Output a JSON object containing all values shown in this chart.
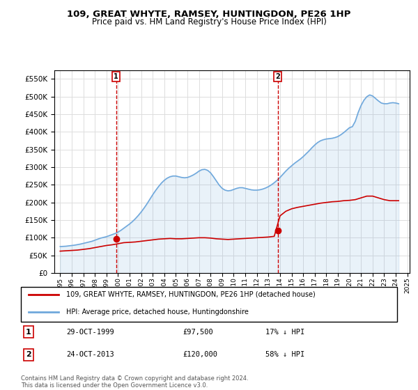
{
  "title": "109, GREAT WHYTE, RAMSEY, HUNTINGDON, PE26 1HP",
  "subtitle": "Price paid vs. HM Land Registry's House Price Index (HPI)",
  "ylim": [
    0,
    575000
  ],
  "yticks": [
    0,
    50000,
    100000,
    150000,
    200000,
    250000,
    300000,
    350000,
    400000,
    450000,
    500000,
    550000
  ],
  "ylabel_format": "£{0}K",
  "hpi_color": "#6fa8dc",
  "price_color": "#cc0000",
  "marker1_year": 1999.83,
  "marker1_price": 97500,
  "marker2_year": 2013.81,
  "marker2_price": 120000,
  "marker1_label": "1",
  "marker2_label": "2",
  "legend_line1": "109, GREAT WHYTE, RAMSEY, HUNTINGDON, PE26 1HP (detached house)",
  "legend_line2": "HPI: Average price, detached house, Huntingdonshire",
  "table_row1": "1     29-OCT-1999          £97,500          17% ↓ HPI",
  "table_row2": "2     24-OCT-2013          £120,000        58% ↓ HPI",
  "footer": "Contains HM Land Registry data © Crown copyright and database right 2024.\nThis data is licensed under the Open Government Licence v3.0.",
  "background_color": "#ffffff",
  "grid_color": "#dddddd",
  "hpi_data": {
    "years": [
      1995,
      1995.25,
      1995.5,
      1995.75,
      1996,
      1996.25,
      1996.5,
      1996.75,
      1997,
      1997.25,
      1997.5,
      1997.75,
      1998,
      1998.25,
      1998.5,
      1998.75,
      1999,
      1999.25,
      1999.5,
      1999.75,
      2000,
      2000.25,
      2000.5,
      2000.75,
      2001,
      2001.25,
      2001.5,
      2001.75,
      2002,
      2002.25,
      2002.5,
      2002.75,
      2003,
      2003.25,
      2003.5,
      2003.75,
      2004,
      2004.25,
      2004.5,
      2004.75,
      2005,
      2005.25,
      2005.5,
      2005.75,
      2006,
      2006.25,
      2006.5,
      2006.75,
      2007,
      2007.25,
      2007.5,
      2007.75,
      2008,
      2008.25,
      2008.5,
      2008.75,
      2009,
      2009.25,
      2009.5,
      2009.75,
      2010,
      2010.25,
      2010.5,
      2010.75,
      2011,
      2011.25,
      2011.5,
      2011.75,
      2012,
      2012.25,
      2012.5,
      2012.75,
      2013,
      2013.25,
      2013.5,
      2013.75,
      2014,
      2014.25,
      2014.5,
      2014.75,
      2015,
      2015.25,
      2015.5,
      2015.75,
      2016,
      2016.25,
      2016.5,
      2016.75,
      2017,
      2017.25,
      2017.5,
      2017.75,
      2018,
      2018.25,
      2018.5,
      2018.75,
      2019,
      2019.25,
      2019.5,
      2019.75,
      2020,
      2020.25,
      2020.5,
      2020.75,
      2021,
      2021.25,
      2021.5,
      2021.75,
      2022,
      2022.25,
      2022.5,
      2022.75,
      2023,
      2023.25,
      2023.5,
      2023.75,
      2024,
      2024.25
    ],
    "values": [
      75000,
      75500,
      76000,
      77000,
      78000,
      79000,
      80500,
      82000,
      84000,
      86000,
      88000,
      90000,
      93000,
      96000,
      99000,
      101000,
      103000,
      106000,
      109000,
      112000,
      116000,
      121000,
      127000,
      133000,
      139000,
      146000,
      154000,
      163000,
      173000,
      184000,
      196000,
      209000,
      222000,
      234000,
      245000,
      255000,
      263000,
      269000,
      273000,
      275000,
      275000,
      273000,
      271000,
      270000,
      271000,
      274000,
      278000,
      283000,
      289000,
      293000,
      294000,
      291000,
      284000,
      273000,
      261000,
      249000,
      240000,
      235000,
      233000,
      234000,
      237000,
      240000,
      242000,
      242000,
      240000,
      238000,
      236000,
      235000,
      235000,
      236000,
      238000,
      241000,
      245000,
      250000,
      256000,
      263000,
      271000,
      280000,
      289000,
      297000,
      304000,
      311000,
      317000,
      323000,
      330000,
      338000,
      346000,
      355000,
      363000,
      370000,
      375000,
      378000,
      380000,
      381000,
      382000,
      384000,
      387000,
      392000,
      398000,
      405000,
      412000,
      415000,
      430000,
      455000,
      475000,
      490000,
      500000,
      505000,
      502000,
      495000,
      488000,
      482000,
      480000,
      480000,
      482000,
      483000,
      482000,
      480000
    ]
  },
  "price_data": {
    "years": [
      1995,
      1995.5,
      1996,
      1996.5,
      1997,
      1997.5,
      1998,
      1998.5,
      1999,
      1999.5,
      2000,
      2000.5,
      2001,
      2001.5,
      2002,
      2002.5,
      2003,
      2003.5,
      2004,
      2004.5,
      2005,
      2005.5,
      2006,
      2006.5,
      2007,
      2007.5,
      2008,
      2008.5,
      2009,
      2009.5,
      2010,
      2010.5,
      2011,
      2011.5,
      2012,
      2012.5,
      2013,
      2013.5,
      2014,
      2014.5,
      2015,
      2015.5,
      2016,
      2016.5,
      2017,
      2017.5,
      2018,
      2018.5,
      2019,
      2019.5,
      2020,
      2020.5,
      2021,
      2021.5,
      2022,
      2022.5,
      2023,
      2023.5,
      2024,
      2024.25
    ],
    "values": [
      62000,
      63000,
      64000,
      65000,
      67000,
      69000,
      72000,
      75000,
      78000,
      80000,
      83000,
      86000,
      87000,
      88000,
      90000,
      92000,
      94000,
      96000,
      97000,
      98000,
      97000,
      97000,
      98000,
      99000,
      100000,
      100000,
      99000,
      97000,
      96000,
      95000,
      96000,
      97000,
      98000,
      99000,
      100000,
      101000,
      102000,
      104000,
      162000,
      175000,
      182000,
      186000,
      189000,
      192000,
      195000,
      198000,
      200000,
      202000,
      203000,
      205000,
      206000,
      208000,
      213000,
      218000,
      218000,
      213000,
      208000,
      205000,
      205000,
      205000
    ]
  }
}
